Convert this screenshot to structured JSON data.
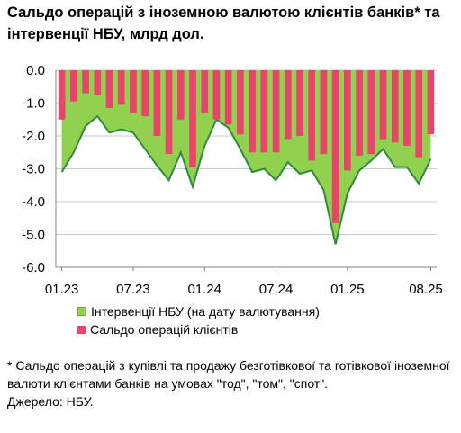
{
  "title": "Сальдо операцій з іноземною валютою клієнтів банків* та інтервенції НБУ, млрд дол.",
  "legend": {
    "interventions": "Інтервенції НБУ (на дату валютування)",
    "balance": "Сальдо операцій клієнтів"
  },
  "footnote": "* Сальдо операцій з купівлі та продажу безготівкової та готівкової іноземної валюти клієнтами банків на умовах \"тод\", \"том\", \"спот\".",
  "source": "Джерело: НБУ.",
  "colors": {
    "interventions": "#92d050",
    "interventions_line": "#2e8b3a",
    "balance": "#e8456a",
    "axis": "#808080",
    "grid": "#c9c9c9"
  },
  "chart_data": {
    "type": "bar",
    "ylim": [
      -6.0,
      0.0
    ],
    "y_ticks": [
      "0.0",
      "-1.0",
      "-2.0",
      "-3.0",
      "-4.0",
      "-5.0",
      "-6.0"
    ],
    "x_tick_labels": [
      "01.23",
      "07.23",
      "01.24",
      "07.24",
      "01.25",
      "08.25"
    ],
    "x_tick_months": [
      0,
      6,
      12,
      18,
      24,
      31
    ],
    "months": [
      "01.23",
      "02.23",
      "03.23",
      "04.23",
      "05.23",
      "06.23",
      "07.23",
      "08.23",
      "09.23",
      "10.23",
      "11.23",
      "12.23",
      "01.24",
      "02.24",
      "03.24",
      "04.24",
      "05.24",
      "06.24",
      "07.24",
      "08.24",
      "09.24",
      "10.24",
      "11.24",
      "12.24",
      "01.25",
      "02.25",
      "03.25",
      "04.25",
      "05.25",
      "06.25",
      "07.25",
      "08.25"
    ],
    "series": [
      {
        "name": "Інтервенції НБУ (на дату валютування)",
        "type": "area",
        "values": [
          -3.1,
          -2.5,
          -1.7,
          -1.4,
          -1.9,
          -1.8,
          -1.9,
          -2.4,
          -2.9,
          -3.35,
          -2.5,
          -3.55,
          -2.3,
          -1.5,
          -1.75,
          -2.4,
          -3.1,
          -3.0,
          -3.35,
          -2.8,
          -3.15,
          -3.05,
          -3.65,
          -5.3,
          -3.75,
          -3.05,
          -2.75,
          -2.4,
          -2.95,
          -2.95,
          -3.45,
          -2.7
        ]
      },
      {
        "name": "Сальдо операцій клієнтів",
        "type": "bar",
        "values": [
          -1.5,
          -0.95,
          -0.7,
          -0.75,
          -1.15,
          -1.05,
          -1.3,
          -1.4,
          -2.0,
          -2.55,
          -1.5,
          -2.95,
          -1.3,
          -1.5,
          -1.65,
          -1.95,
          -2.5,
          -2.5,
          -2.5,
          -2.1,
          -2.0,
          -2.75,
          -2.55,
          -4.65,
          -3.05,
          -2.6,
          -2.55,
          -2.1,
          -2.2,
          -2.3,
          -2.65,
          -1.95
        ]
      }
    ]
  }
}
